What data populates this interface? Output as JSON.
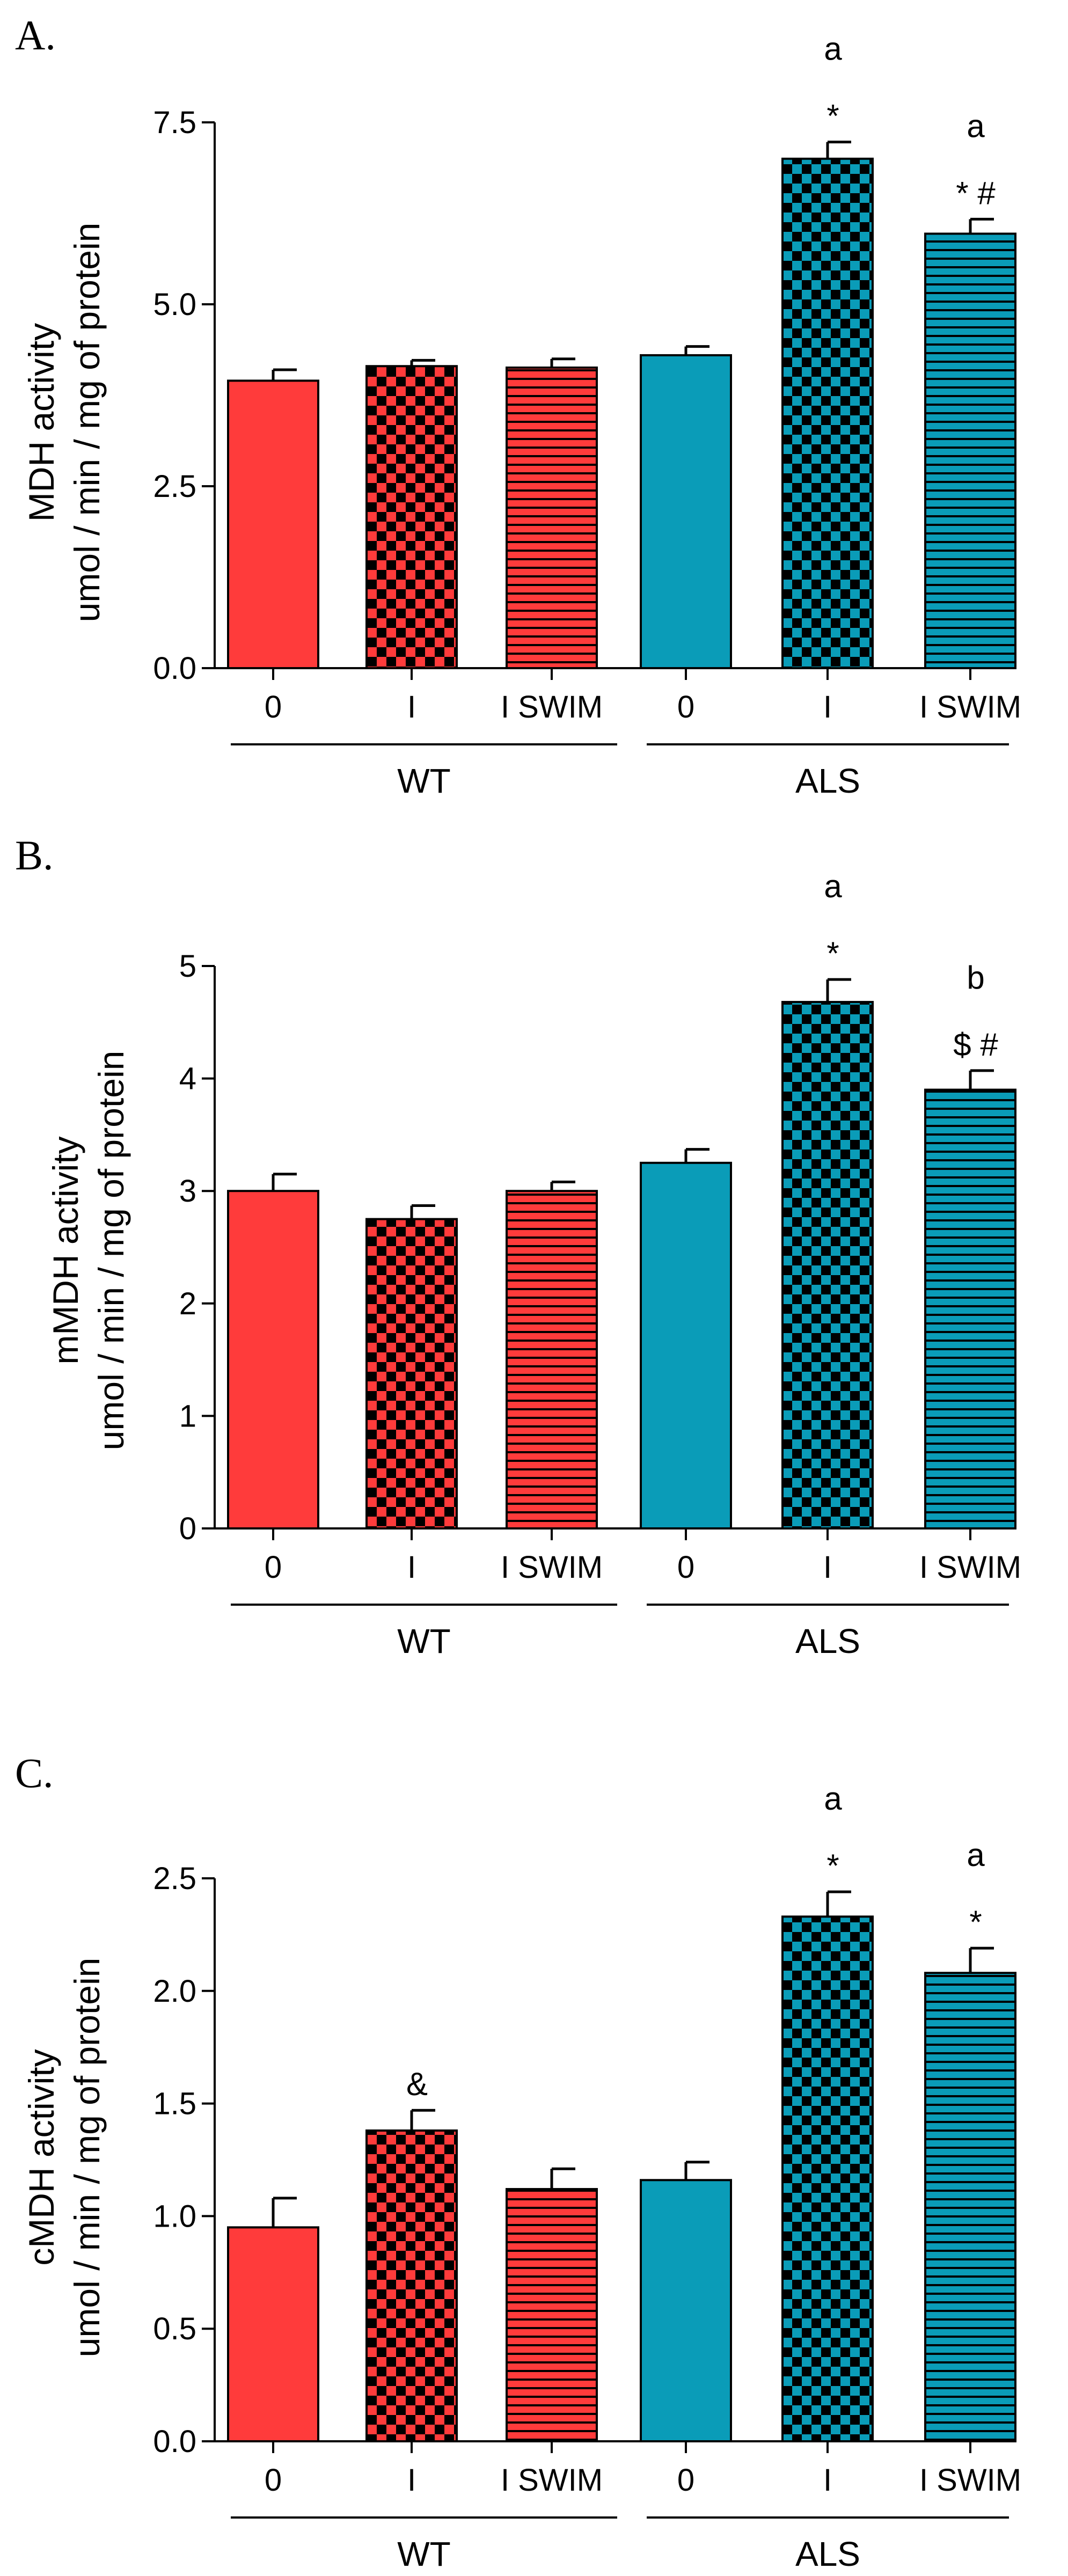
{
  "colors": {
    "wt": "#FF3B3B",
    "als": "#0A9CB8",
    "ink": "#000000"
  },
  "chart_data": [
    {
      "type": "bar",
      "panel_label": "A.",
      "title": "",
      "ylabel_line1": "MDH activity",
      "ylabel_line2": "umol / min / mg of protein",
      "ylim": [
        0,
        7.5
      ],
      "yticks": [
        0,
        2.5,
        5,
        7.5
      ],
      "ytick_labels": [
        "0.0",
        "2.5",
        "5.0",
        "7.5"
      ],
      "categories": [
        "0",
        "I",
        "I SWIM",
        "0",
        "I",
        "I SWIM"
      ],
      "groups": [
        {
          "label": "WT",
          "count": 3
        },
        {
          "label": "ALS",
          "count": 3
        }
      ],
      "patterns": [
        "solid",
        "checker",
        "hstripe",
        "solid",
        "checker",
        "hstripe"
      ],
      "values": [
        3.95,
        4.15,
        4.13,
        4.3,
        7.0,
        5.97
      ],
      "errors": [
        0.15,
        0.08,
        0.12,
        0.12,
        0.23,
        0.2
      ],
      "annotations": [
        {
          "bar": 4,
          "lines": [
            "a",
            "*"
          ]
        },
        {
          "bar": 5,
          "lines": [
            "a",
            "* #"
          ]
        }
      ]
    },
    {
      "type": "bar",
      "panel_label": "B.",
      "title": "",
      "ylabel_line1": "mMDH activity",
      "ylabel_line2": "umol / min / mg of protein",
      "ylim": [
        0,
        5
      ],
      "yticks": [
        0,
        1,
        2,
        3,
        4,
        5
      ],
      "ytick_labels": [
        "0",
        "1",
        "2",
        "3",
        "4",
        "5"
      ],
      "categories": [
        "0",
        "I",
        "I SWIM",
        "0",
        "I",
        "I SWIM"
      ],
      "groups": [
        {
          "label": "WT",
          "count": 3
        },
        {
          "label": "ALS",
          "count": 3
        }
      ],
      "patterns": [
        "solid",
        "checker",
        "hstripe",
        "solid",
        "checker",
        "hstripe"
      ],
      "values": [
        3.0,
        2.75,
        3.0,
        3.25,
        4.68,
        3.9
      ],
      "errors": [
        0.15,
        0.12,
        0.08,
        0.12,
        0.2,
        0.17
      ],
      "annotations": [
        {
          "bar": 4,
          "lines": [
            "a",
            "*"
          ]
        },
        {
          "bar": 5,
          "lines": [
            "b",
            "$ #"
          ]
        }
      ]
    },
    {
      "type": "bar",
      "panel_label": "C.",
      "title": "",
      "ylabel_line1": "cMDH activity",
      "ylabel_line2": "umol / min / mg of protein",
      "ylim": [
        0,
        2.5
      ],
      "yticks": [
        0,
        0.5,
        1,
        1.5,
        2,
        2.5
      ],
      "ytick_labels": [
        "0.0",
        "0.5",
        "1.0",
        "1.5",
        "2.0",
        "2.5"
      ],
      "categories": [
        "0",
        "I",
        "I SWIM",
        "0",
        "I",
        "I SWIM"
      ],
      "groups": [
        {
          "label": "WT",
          "count": 3
        },
        {
          "label": "ALS",
          "count": 3
        }
      ],
      "patterns": [
        "solid",
        "checker",
        "hstripe",
        "solid",
        "checker",
        "hstripe"
      ],
      "values": [
        0.95,
        1.38,
        1.12,
        1.16,
        2.33,
        2.08
      ],
      "errors": [
        0.13,
        0.09,
        0.09,
        0.08,
        0.11,
        0.11
      ],
      "annotations": [
        {
          "bar": 1,
          "lines": [
            "&"
          ]
        },
        {
          "bar": 4,
          "lines": [
            "a",
            "*"
          ]
        },
        {
          "bar": 5,
          "lines": [
            "a",
            "*"
          ]
        }
      ]
    }
  ]
}
